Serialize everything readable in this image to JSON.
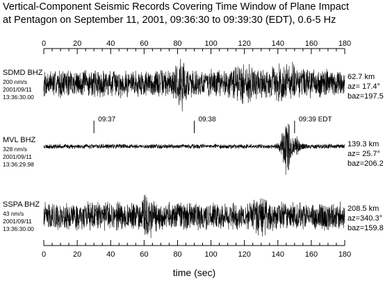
{
  "chart_data": {
    "type": "line",
    "title": [
      "Vertical-Component Seismic Records Covering Time Window of Plane Impact",
      "at Pentagon on September 11, 2001, 09:36:30 to 09:39:30 (EDT), 0.6-5 Hz"
    ],
    "xlabel": "time (sec)",
    "ylabel": "",
    "xlim": [
      0,
      180
    ],
    "x_ticks": [
      0,
      20,
      40,
      60,
      80,
      100,
      120,
      140,
      160,
      180
    ],
    "x_minor_step": 5,
    "grid": false,
    "time_markers": [
      {
        "label": "09:37",
        "t": 30
      },
      {
        "label": "09:38",
        "t": 90
      },
      {
        "label": "09:39 EDT",
        "t": 150
      }
    ],
    "series": [
      {
        "name": "SDMD BHZ",
        "scale": "200 nm/s",
        "date": "2001/09/11",
        "start": "13:36:30.00",
        "distance": "62.7 km",
        "az": "az= 17.4°",
        "baz": "baz=197.5",
        "noise_level": 0.55,
        "bursts": [
          {
            "t": 82,
            "amp": 0.5,
            "width": 4
          },
          {
            "t": 120,
            "amp": 0.35,
            "width": 6
          },
          {
            "t": 145,
            "amp": 0.3,
            "width": 8
          }
        ],
        "seed": 7
      },
      {
        "name": "MVL BHZ",
        "scale": "328 nm/s",
        "date": "2001/09/11",
        "start": "13:36:29.98",
        "distance": "139.3 km",
        "az": "az= 25.7°",
        "baz": "baz=206.2",
        "noise_level": 0.09,
        "bursts": [
          {
            "t": 145,
            "amp": 0.95,
            "width": 3
          },
          {
            "t": 150,
            "amp": 0.3,
            "width": 4
          }
        ],
        "seed": 23
      },
      {
        "name": "SSPA BHZ",
        "scale": "43 nm/s",
        "date": "2001/09/11",
        "start": "13:36:30.00",
        "distance": "208.5 km",
        "az": "az=340.3°",
        "baz": "baz=159.8",
        "noise_level": 0.55,
        "bursts": [
          {
            "t": 62,
            "amp": 0.35,
            "width": 5
          },
          {
            "t": 130,
            "amp": 0.35,
            "width": 5
          }
        ],
        "seed": 41
      }
    ]
  }
}
